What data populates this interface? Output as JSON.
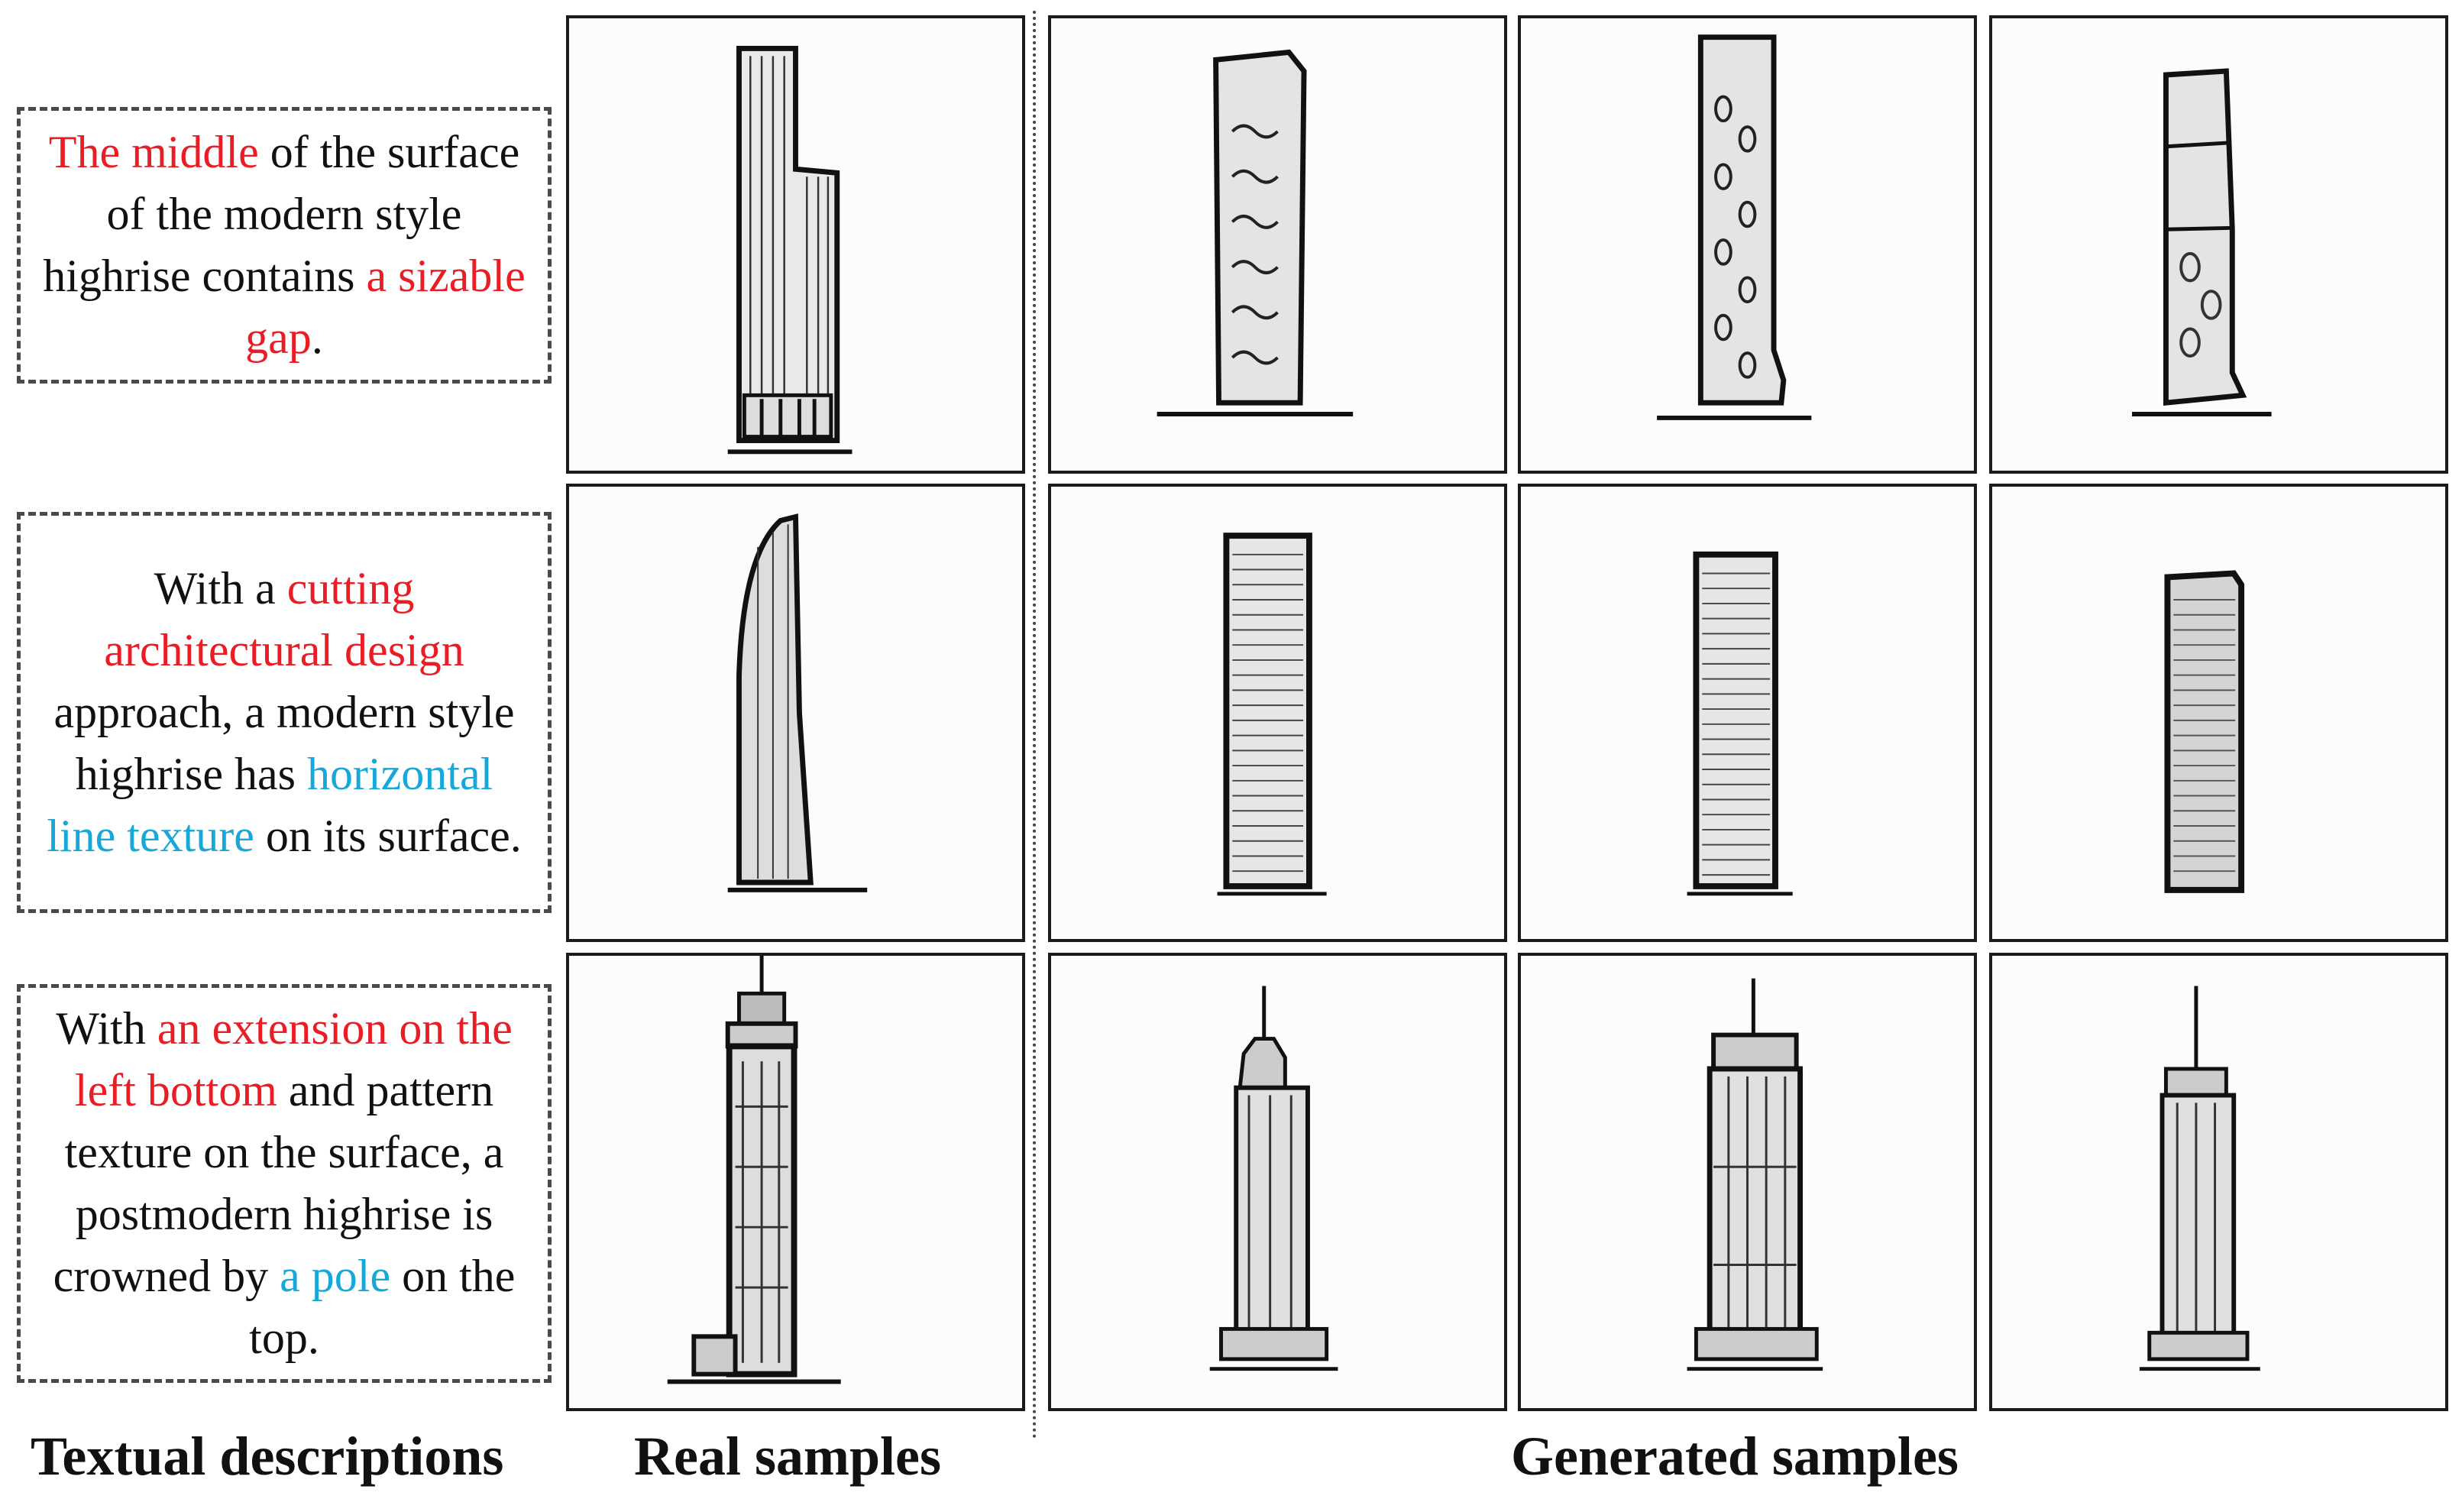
{
  "rows": [
    {
      "description": [
        {
          "text": "The middle",
          "color": "red"
        },
        {
          "text": " of the surface of the modern style highrise contains ",
          "color": "black"
        },
        {
          "text": "a sizable gap",
          "color": "red"
        },
        {
          "text": ".",
          "color": "black"
        }
      ]
    },
    {
      "description": [
        {
          "text": "With a ",
          "color": "black"
        },
        {
          "text": "cutting architectural design",
          "color": "red"
        },
        {
          "text": " approach, a modern style highrise has ",
          "color": "black"
        },
        {
          "text": "horizontal line texture",
          "color": "cyan"
        },
        {
          "text": " on its surface.",
          "color": "black"
        }
      ]
    },
    {
      "description": [
        {
          "text": "With ",
          "color": "black"
        },
        {
          "text": "an extension on the left bottom",
          "color": "red"
        },
        {
          "text": " and pattern texture on the surface, a postmodern highrise is crowned by ",
          "color": "black"
        },
        {
          "text": "a pole",
          "color": "cyan"
        },
        {
          "text": " on the top.",
          "color": "black"
        }
      ]
    }
  ],
  "captions": {
    "textual": "Textual descriptions",
    "real": "Real samples",
    "generated": "Generated samples"
  },
  "highlight_colors": {
    "red": "#ea1c24",
    "cyan": "#16a8d8"
  }
}
